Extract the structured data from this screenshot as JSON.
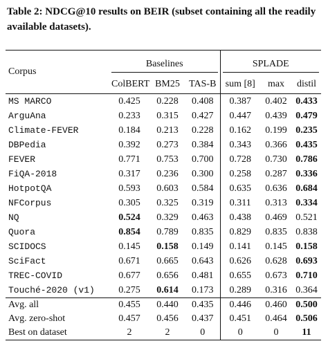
{
  "caption": "Table 2: NDCG@10 results on BEIR (subset containing all the readily available datasets).",
  "table": {
    "corpus_header": "Corpus",
    "groups": [
      "Baselines",
      "SPLADE"
    ],
    "columns": [
      "ColBERT",
      "BM25",
      "TAS-B",
      "sum [8]",
      "max",
      "distil"
    ],
    "rows": [
      {
        "corpus": "MS MARCO",
        "values": [
          "0.425",
          "0.228",
          "0.408",
          "0.387",
          "0.402",
          "0.433"
        ],
        "bold": [
          5
        ]
      },
      {
        "corpus": "ArguAna",
        "values": [
          "0.233",
          "0.315",
          "0.427",
          "0.447",
          "0.439",
          "0.479"
        ],
        "bold": [
          5
        ]
      },
      {
        "corpus": "Climate-FEVER",
        "values": [
          "0.184",
          "0.213",
          "0.228",
          "0.162",
          "0.199",
          "0.235"
        ],
        "bold": [
          5
        ]
      },
      {
        "corpus": "DBPedia",
        "values": [
          "0.392",
          "0.273",
          "0.384",
          "0.343",
          "0.366",
          "0.435"
        ],
        "bold": [
          5
        ]
      },
      {
        "corpus": "FEVER",
        "values": [
          "0.771",
          "0.753",
          "0.700",
          "0.728",
          "0.730",
          "0.786"
        ],
        "bold": [
          5
        ]
      },
      {
        "corpus": "FiQA-2018",
        "values": [
          "0.317",
          "0.236",
          "0.300",
          "0.258",
          "0.287",
          "0.336"
        ],
        "bold": [
          5
        ]
      },
      {
        "corpus": "HotpotQA",
        "values": [
          "0.593",
          "0.603",
          "0.584",
          "0.635",
          "0.636",
          "0.684"
        ],
        "bold": [
          5
        ]
      },
      {
        "corpus": "NFCorpus",
        "values": [
          "0.305",
          "0.325",
          "0.319",
          "0.311",
          "0.313",
          "0.334"
        ],
        "bold": [
          5
        ]
      },
      {
        "corpus": "NQ",
        "values": [
          "0.524",
          "0.329",
          "0.463",
          "0.438",
          "0.469",
          "0.521"
        ],
        "bold": [
          0
        ]
      },
      {
        "corpus": "Quora",
        "values": [
          "0.854",
          "0.789",
          "0.835",
          "0.829",
          "0.835",
          "0.838"
        ],
        "bold": [
          0
        ]
      },
      {
        "corpus": "SCIDOCS",
        "values": [
          "0.145",
          "0.158",
          "0.149",
          "0.141",
          "0.145",
          "0.158"
        ],
        "bold": [
          1,
          5
        ]
      },
      {
        "corpus": "SciFact",
        "values": [
          "0.671",
          "0.665",
          "0.643",
          "0.626",
          "0.628",
          "0.693"
        ],
        "bold": [
          5
        ]
      },
      {
        "corpus": "TREC-COVID",
        "values": [
          "0.677",
          "0.656",
          "0.481",
          "0.655",
          "0.673",
          "0.710"
        ],
        "bold": [
          5
        ]
      },
      {
        "corpus": "Touché-2020 (v1)",
        "values": [
          "0.275",
          "0.614",
          "0.173",
          "0.289",
          "0.316",
          "0.364"
        ],
        "bold": [
          1
        ]
      }
    ],
    "summary_rows": [
      {
        "corpus": "Avg. all",
        "values": [
          "0.455",
          "0.440",
          "0.435",
          "0.446",
          "0.460",
          "0.500"
        ],
        "bold": [
          5
        ]
      },
      {
        "corpus": "Avg. zero-shot",
        "values": [
          "0.457",
          "0.456",
          "0.437",
          "0.451",
          "0.464",
          "0.506"
        ],
        "bold": [
          5
        ]
      },
      {
        "corpus": "Best on dataset",
        "values": [
          "2",
          "2",
          "0",
          "0",
          "0",
          "11"
        ],
        "bold": [
          5
        ]
      }
    ]
  }
}
